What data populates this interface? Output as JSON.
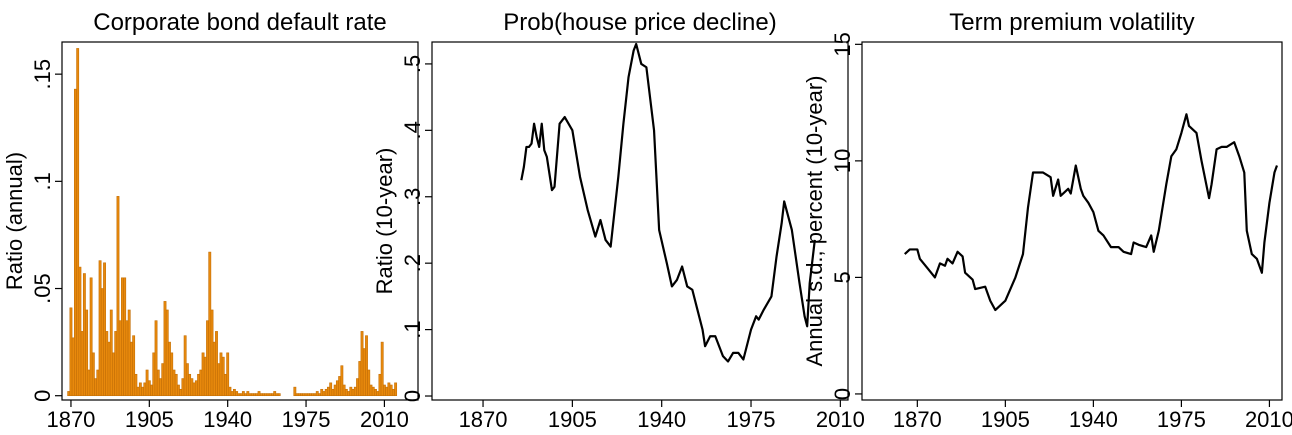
{
  "chart_data": [
    {
      "type": "bar",
      "title": "Corporate bond default rate",
      "y_label": "Ratio (annual)",
      "color": "#e8890c",
      "edge_color": "#c46f06",
      "xlim": [
        1866,
        2025
      ],
      "xticks": [
        1870,
        1905,
        1940,
        1975,
        2010
      ],
      "ylim": [
        -0.002,
        0.165
      ],
      "yticks": [
        0,
        {
          "value": 0.05,
          "label": ".05"
        },
        {
          "value": 0.1,
          "label": ".1"
        },
        {
          "value": 0.15,
          "label": ".15"
        }
      ],
      "x": [
        1869,
        1870,
        1871,
        1872,
        1873,
        1874,
        1875,
        1876,
        1877,
        1878,
        1879,
        1880,
        1881,
        1882,
        1883,
        1884,
        1885,
        1886,
        1887,
        1888,
        1889,
        1890,
        1891,
        1892,
        1893,
        1894,
        1895,
        1896,
        1897,
        1898,
        1899,
        1900,
        1901,
        1902,
        1903,
        1904,
        1905,
        1906,
        1907,
        1908,
        1909,
        1910,
        1911,
        1912,
        1913,
        1914,
        1915,
        1916,
        1917,
        1918,
        1919,
        1920,
        1921,
        1922,
        1923,
        1924,
        1925,
        1926,
        1927,
        1928,
        1929,
        1930,
        1931,
        1932,
        1933,
        1934,
        1935,
        1936,
        1937,
        1938,
        1939,
        1940,
        1941,
        1942,
        1943,
        1944,
        1945,
        1946,
        1947,
        1948,
        1949,
        1950,
        1951,
        1952,
        1953,
        1954,
        1955,
        1956,
        1957,
        1958,
        1959,
        1960,
        1961,
        1962,
        1963,
        1964,
        1965,
        1966,
        1967,
        1968,
        1969,
        1970,
        1971,
        1972,
        1973,
        1974,
        1975,
        1976,
        1977,
        1978,
        1979,
        1980,
        1981,
        1982,
        1983,
        1984,
        1985,
        1986,
        1987,
        1988,
        1989,
        1990,
        1991,
        1992,
        1993,
        1994,
        1995,
        1996,
        1997,
        1998,
        1999,
        2000,
        2001,
        2002,
        2003,
        2004,
        2005,
        2006,
        2007,
        2008,
        2009,
        2010,
        2011,
        2012,
        2013,
        2014,
        2015
      ],
      "values": [
        0.002,
        0.041,
        0.027,
        0.143,
        0.162,
        0.06,
        0.03,
        0.057,
        0.04,
        0.012,
        0.055,
        0.02,
        0.008,
        0.012,
        0.063,
        0.05,
        0.062,
        0.03,
        0.025,
        0.04,
        0.02,
        0.03,
        0.093,
        0.035,
        0.055,
        0.055,
        0.035,
        0.04,
        0.025,
        0.028,
        0.01,
        0.004,
        0.006,
        0.004,
        0.006,
        0.012,
        0.007,
        0.005,
        0.02,
        0.035,
        0.012,
        0.008,
        0.015,
        0.044,
        0.04,
        0.025,
        0.02,
        0.012,
        0.01,
        0.005,
        0.003,
        0.008,
        0.028,
        0.015,
        0.01,
        0.008,
        0.006,
        0.007,
        0.01,
        0.012,
        0.02,
        0.018,
        0.035,
        0.067,
        0.04,
        0.025,
        0.03,
        0.015,
        0.02,
        0.018,
        0.01,
        0.02,
        0.004,
        0.002,
        0.003,
        0.002,
        0.001,
        0.001,
        0.002,
        0.001,
        0.002,
        0.001,
        0.001,
        0.001,
        0.001,
        0.002,
        0.001,
        0.001,
        0.001,
        0.001,
        0.001,
        0.001,
        0.002,
        0.001,
        0.001,
        null,
        null,
        null,
        null,
        null,
        null,
        0.004,
        0.001,
        0.001,
        0.001,
        0.001,
        0.001,
        0.001,
        0.001,
        0.001,
        0.001,
        0.002,
        0.001,
        0.003,
        0.002,
        0.003,
        0.004,
        0.006,
        0.003,
        0.005,
        0.007,
        0.009,
        0.014,
        0.005,
        0.003,
        0.002,
        0.004,
        0.003,
        0.004,
        0.008,
        0.016,
        0.03,
        0.022,
        0.028,
        0.012,
        0.005,
        0.004,
        0.003,
        0.002,
        0.01,
        0.025,
        0.005,
        0.004,
        0.006,
        0.005,
        0.003,
        0.006
      ]
    },
    {
      "type": "line",
      "title": "Prob(house price decline)",
      "y_label": "Ratio (10-year)",
      "color": "#000000",
      "xlim": [
        1850,
        2013
      ],
      "xticks": [
        1870,
        1905,
        1940,
        1975,
        2010
      ],
      "ylim": [
        -0.006,
        0.533
      ],
      "yticks": [
        0,
        {
          "value": 0.1,
          "label": ".1"
        },
        {
          "value": 0.2,
          "label": ".2"
        },
        {
          "value": 0.3,
          "label": ".3"
        },
        {
          "value": 0.4,
          "label": ".4"
        },
        {
          "value": 0.5,
          "label": ".5"
        }
      ],
      "x": [
        1885,
        1886,
        1887,
        1888,
        1889,
        1890,
        1891,
        1892,
        1893,
        1894,
        1895,
        1897,
        1898,
        1900,
        1902,
        1905,
        1908,
        1911,
        1914,
        1916,
        1918,
        1920,
        1923,
        1925,
        1927,
        1929,
        1930,
        1932,
        1934,
        1937,
        1939,
        1942,
        1944,
        1946,
        1948,
        1950,
        1952,
        1954,
        1956,
        1957,
        1959,
        1961,
        1964,
        1966,
        1968,
        1970,
        1972,
        1975,
        1977,
        1978,
        1980,
        1983,
        1985,
        1987,
        1988,
        1991,
        1994,
        1996,
        1997,
        1998,
        2000
      ],
      "values": [
        0.325,
        0.345,
        0.375,
        0.375,
        0.38,
        0.41,
        0.39,
        0.375,
        0.41,
        0.37,
        0.36,
        0.31,
        0.315,
        0.41,
        0.42,
        0.4,
        0.33,
        0.28,
        0.24,
        0.265,
        0.235,
        0.225,
        0.33,
        0.41,
        0.48,
        0.52,
        0.53,
        0.5,
        0.495,
        0.4,
        0.25,
        0.2,
        0.165,
        0.175,
        0.195,
        0.165,
        0.16,
        0.13,
        0.1,
        0.075,
        0.09,
        0.09,
        0.06,
        0.052,
        0.065,
        0.065,
        0.055,
        0.1,
        0.12,
        0.115,
        0.13,
        0.15,
        0.21,
        0.26,
        0.293,
        0.25,
        0.17,
        0.12,
        0.105,
        0.17,
        0.235
      ]
    },
    {
      "type": "line",
      "title": "Term premium volatility",
      "y_label": "Annual s.d., percent (10-year)",
      "color": "#000000",
      "xlim": [
        1848,
        2015
      ],
      "xticks": [
        1870,
        1905,
        1940,
        1975,
        2010
      ],
      "ylim": [
        -0.26,
        15.1
      ],
      "yticks": [
        0,
        5,
        10,
        15
      ],
      "x": [
        1865,
        1867,
        1870,
        1871,
        1874,
        1877,
        1879,
        1881,
        1882,
        1884,
        1886,
        1888,
        1889,
        1892,
        1893,
        1897,
        1899,
        1901,
        1905,
        1907,
        1909,
        1912,
        1914,
        1916,
        1920,
        1923,
        1924,
        1926,
        1927,
        1930,
        1931,
        1933,
        1935,
        1936,
        1938,
        1940,
        1942,
        1944,
        1947,
        1950,
        1952,
        1955,
        1956,
        1958,
        1961,
        1963,
        1964,
        1966,
        1969,
        1971,
        1973,
        1975,
        1977,
        1978,
        1981,
        1983,
        1986,
        1987,
        1989,
        1991,
        1993,
        1996,
        1998,
        2000,
        2001,
        2003,
        2005,
        2007,
        2008,
        2010,
        2012,
        2013
      ],
      "values": [
        6.0,
        6.2,
        6.2,
        5.8,
        5.4,
        5.0,
        5.6,
        5.5,
        5.8,
        5.6,
        6.1,
        5.9,
        5.2,
        4.9,
        4.5,
        4.6,
        4.0,
        3.6,
        4.0,
        4.5,
        5.0,
        6.0,
        8.0,
        9.5,
        9.5,
        9.3,
        8.5,
        9.2,
        8.5,
        8.8,
        8.6,
        9.8,
        8.8,
        8.5,
        8.2,
        7.8,
        7.0,
        6.8,
        6.3,
        6.3,
        6.1,
        6.0,
        6.5,
        6.4,
        6.3,
        6.8,
        6.1,
        7.0,
        9.0,
        10.2,
        10.5,
        11.2,
        12.0,
        11.5,
        11.2,
        10.0,
        8.4,
        9.0,
        10.5,
        10.6,
        10.6,
        10.8,
        10.2,
        9.5,
        7.0,
        6.0,
        5.8,
        5.2,
        6.5,
        8.2,
        9.5,
        9.8
      ]
    }
  ]
}
